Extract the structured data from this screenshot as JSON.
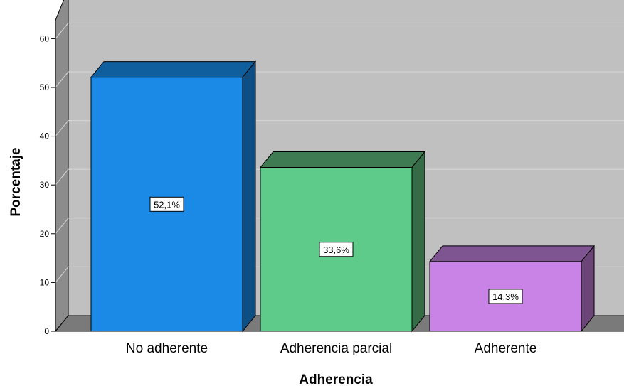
{
  "chart_data": {
    "type": "bar",
    "style": "3d",
    "xlabel": "Adherencia",
    "ylabel": "Porcentaje",
    "categories": [
      "No adherente",
      "Adherencia parcial",
      "Adherente"
    ],
    "values": [
      52.1,
      33.6,
      14.3
    ],
    "data_labels": [
      "52,1%",
      "33,6%",
      "14,3%"
    ],
    "ylim": [
      0,
      60
    ],
    "yticks": [
      "0",
      "10",
      "20",
      "30",
      "40",
      "50",
      "60"
    ],
    "grid": true,
    "colors": {
      "bars": [
        "#1a8ae6",
        "#5ecb8b",
        "#c983e6"
      ],
      "bar_tops": [
        "#0f5f9e",
        "#3e7a52",
        "#7e5590"
      ],
      "bar_sides": [
        "#0d4f85",
        "#356b47",
        "#6b4578"
      ],
      "wall": "#c0c0c0",
      "side_wall": "#8c8c8c",
      "floor": "#7a7a7a",
      "gridline": "#d6d6d6"
    }
  }
}
